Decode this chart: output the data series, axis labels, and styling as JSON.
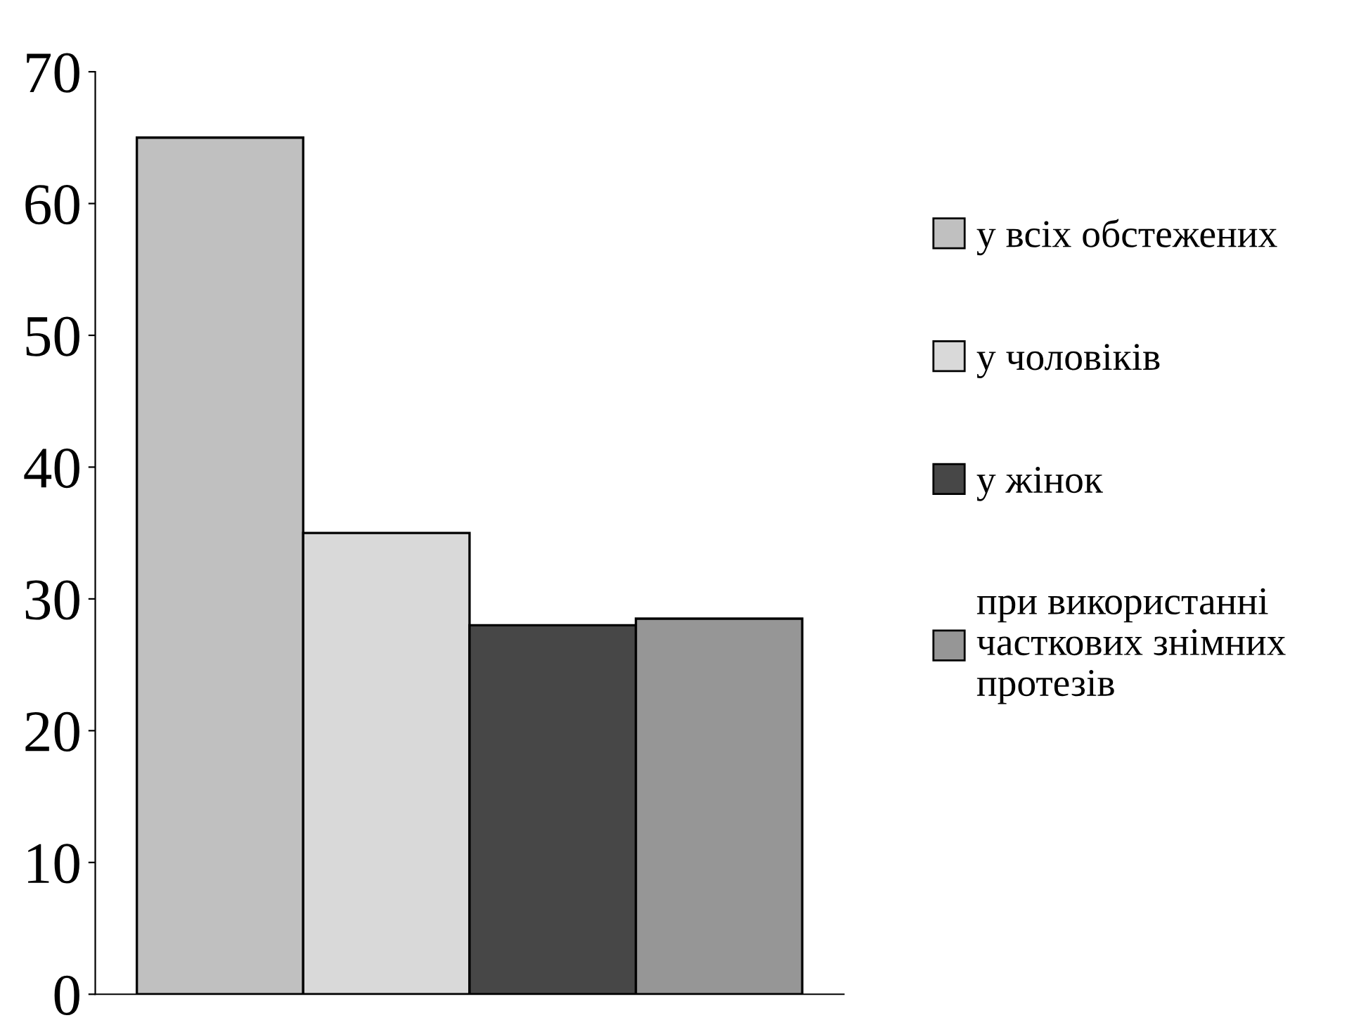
{
  "chart_data": {
    "type": "bar",
    "categories": [
      null,
      null,
      null,
      null
    ],
    "series": [
      {
        "name": "у всіх обстежених",
        "color": "#c0c0c0",
        "values": [
          65,
          null,
          null,
          null
        ]
      },
      {
        "name": "у чоловіків",
        "color": "#d9d9d9",
        "values": [
          null,
          35,
          null,
          null
        ]
      },
      {
        "name": "у жінок",
        "color": "#474747",
        "values": [
          null,
          null,
          28,
          null
        ]
      },
      {
        "name": "при використанні часткових знімних протезів",
        "color": "#969696",
        "values": [
          null,
          null,
          null,
          28.5
        ]
      }
    ],
    "ylim": [
      0,
      70
    ],
    "yticks": [
      0,
      10,
      20,
      30,
      40,
      50,
      60,
      70
    ],
    "grid": false,
    "legend": "right"
  }
}
